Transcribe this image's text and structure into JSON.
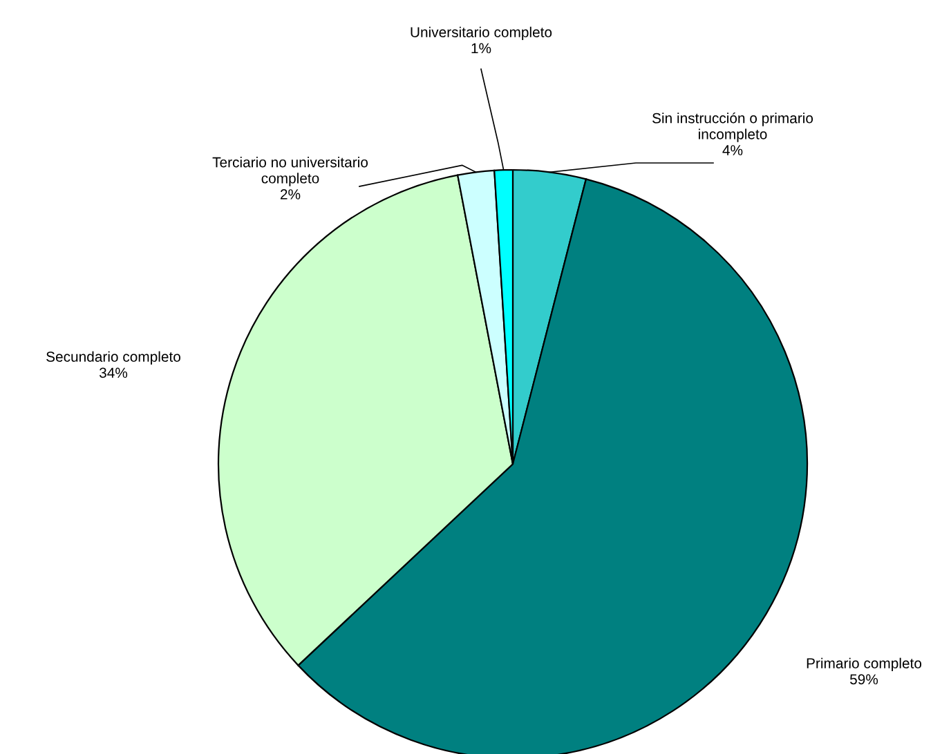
{
  "chart_data": {
    "type": "pie",
    "categories": [
      "Sin instrucción o primario\nincompleto",
      "Primario completo",
      "Secundario completo",
      "Terciario no universitario\ncompleto",
      "Universitario completo"
    ],
    "values": [
      4,
      59,
      34,
      2,
      1
    ],
    "colors": [
      "#33cccc",
      "#008080",
      "#ccffcc",
      "#ccffff",
      "#00ffff"
    ],
    "value_labels": [
      "4%",
      "59%",
      "34%",
      "2%",
      "1%"
    ],
    "legend": false
  }
}
